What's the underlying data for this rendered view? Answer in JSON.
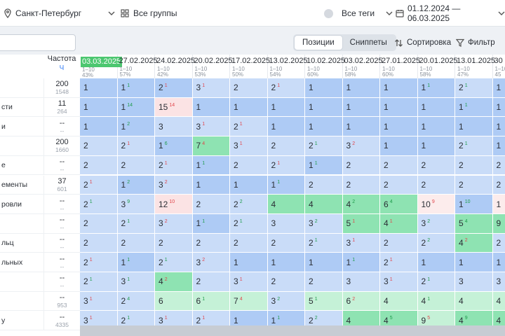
{
  "filters": {
    "region": "Санкт-Петербург",
    "groups": "Все группы",
    "tags": "Все теги",
    "date_range": "01.12.2024 — 06.03.2025"
  },
  "toolbar": {
    "tab_positions": "Позиции",
    "tab_snippets": "Сниппеты",
    "sort_label": "Сортировка",
    "filter_label": "Фильтр"
  },
  "table": {
    "freq_header": "Частота",
    "freq_unit": "Ч",
    "columns": [
      {
        "date": "03.03.2025",
        "range": "1–10",
        "pct": "43%"
      },
      {
        "date": "27.02.2025",
        "range": "1–10",
        "pct": "57%"
      },
      {
        "date": "24.02.2025",
        "range": "1–10",
        "pct": "42%"
      },
      {
        "date": "20.02.2025",
        "range": "1–10",
        "pct": "53%"
      },
      {
        "date": "17.02.2025",
        "range": "1–10",
        "pct": "50%"
      },
      {
        "date": "13.02.2025",
        "range": "1–10",
        "pct": "54%"
      },
      {
        "date": "10.02.2025",
        "range": "1–10",
        "pct": "60%"
      },
      {
        "date": "03.02.2025",
        "range": "1–10",
        "pct": "58%"
      },
      {
        "date": "27.01.2025",
        "range": "1–10",
        "pct": "60%"
      },
      {
        "date": "20.01.2025",
        "range": "1–10",
        "pct": "58%"
      },
      {
        "date": "13.01.2025",
        "range": "1–10",
        "pct": "47%"
      },
      {
        "date": "30",
        "range": "1–10",
        "pct": "45"
      }
    ],
    "rows": [
      {
        "kw": "",
        "fa": "200",
        "fb": "1548",
        "cells": [
          [
            "1",
            "",
            "",
            "b"
          ],
          [
            "1",
            "1",
            "up",
            "b"
          ],
          [
            "2",
            "1",
            "dn",
            "b"
          ],
          [
            "3",
            "1",
            "dn",
            "lb"
          ],
          [
            "2",
            "",
            "",
            "lb"
          ],
          [
            "2",
            "1",
            "dn",
            "lb"
          ],
          [
            "1",
            "",
            "",
            "b"
          ],
          [
            "1",
            "",
            "",
            "b"
          ],
          [
            "1",
            "",
            "",
            "b"
          ],
          [
            "1",
            "1",
            "up",
            "b"
          ],
          [
            "2",
            "1",
            "up",
            "lb"
          ],
          [
            "1",
            "",
            "",
            "b"
          ]
        ]
      },
      {
        "kw": "сти",
        "fa": "11",
        "fb": "264",
        "cells": [
          [
            "1",
            "",
            "",
            "b"
          ],
          [
            "1",
            "14",
            "up",
            "b"
          ],
          [
            "15",
            "14",
            "dn",
            "r"
          ],
          [
            "1",
            "",
            "",
            "b"
          ],
          [
            "1",
            "",
            "",
            "b"
          ],
          [
            "1",
            "",
            "",
            "b"
          ],
          [
            "1",
            "",
            "",
            "b"
          ],
          [
            "1",
            "",
            "",
            "b"
          ],
          [
            "1",
            "",
            "",
            "b"
          ],
          [
            "1",
            "",
            "",
            "b"
          ],
          [
            "1",
            "1",
            "up",
            "b"
          ],
          [
            "1",
            "",
            "",
            "b"
          ]
        ]
      },
      {
        "kw": "и",
        "fa": "--",
        "fb": "--",
        "cells": [
          [
            "1",
            "",
            "",
            "b"
          ],
          [
            "1",
            "2",
            "up",
            "b"
          ],
          [
            "3",
            "",
            "",
            "lb"
          ],
          [
            "3",
            "1",
            "dn",
            "lb"
          ],
          [
            "2",
            "1",
            "dn",
            "lb"
          ],
          [
            "1",
            "",
            "",
            "b"
          ],
          [
            "1",
            "",
            "",
            "b"
          ],
          [
            "1",
            "",
            "",
            "b"
          ],
          [
            "1",
            "",
            "",
            "b"
          ],
          [
            "1",
            "",
            "",
            "b"
          ],
          [
            "1",
            "",
            "",
            "b"
          ],
          [
            "1",
            "",
            "",
            "b"
          ]
        ]
      },
      {
        "kw": "",
        "fa": "200",
        "fb": "1660",
        "cells": [
          [
            "2",
            "",
            "",
            "lb"
          ],
          [
            "2",
            "1",
            "dn",
            "lb"
          ],
          [
            "1",
            "6",
            "up",
            "b"
          ],
          [
            "7",
            "4",
            "dn",
            "g"
          ],
          [
            "3",
            "1",
            "dn",
            "lb"
          ],
          [
            "2",
            "",
            "",
            "lb"
          ],
          [
            "2",
            "1",
            "up",
            "lb"
          ],
          [
            "3",
            "2",
            "dn",
            "lb"
          ],
          [
            "1",
            "",
            "",
            "b"
          ],
          [
            "1",
            "",
            "",
            "b"
          ],
          [
            "2",
            "1",
            "up",
            "lb"
          ],
          [
            "1",
            "",
            "",
            "b"
          ]
        ]
      },
      {
        "kw": "е",
        "fa": "--",
        "fb": "--",
        "cells": [
          [
            "2",
            "",
            "",
            "lb"
          ],
          [
            "2",
            "",
            "",
            "lb"
          ],
          [
            "2",
            "1",
            "dn",
            "lb"
          ],
          [
            "1",
            "1",
            "up",
            "b"
          ],
          [
            "2",
            "",
            "",
            "lb"
          ],
          [
            "2",
            "1",
            "dn",
            "lb"
          ],
          [
            "1",
            "1",
            "up",
            "b"
          ],
          [
            "2",
            "",
            "",
            "lb"
          ],
          [
            "2",
            "",
            "",
            "lb"
          ],
          [
            "2",
            "",
            "",
            "lb"
          ],
          [
            "2",
            "",
            "",
            "lb"
          ],
          [
            "2",
            "",
            "",
            "lb"
          ]
        ]
      },
      {
        "kw": "ементы",
        "fa": "37",
        "fb": "601",
        "cells": [
          [
            "2",
            "1",
            "dn",
            "lb"
          ],
          [
            "1",
            "2",
            "up",
            "b"
          ],
          [
            "3",
            "2",
            "dn",
            "lb"
          ],
          [
            "1",
            "",
            "",
            "b"
          ],
          [
            "1",
            "",
            "",
            "b"
          ],
          [
            "1",
            "1",
            "up",
            "b"
          ],
          [
            "2",
            "",
            "",
            "lb"
          ],
          [
            "2",
            "",
            "",
            "lb"
          ],
          [
            "2",
            "",
            "",
            "lb"
          ],
          [
            "2",
            "",
            "",
            "lb"
          ],
          [
            "2",
            "",
            "",
            "lb"
          ],
          [
            "2",
            "",
            "",
            "lb"
          ]
        ]
      },
      {
        "kw": "ровли",
        "fa": "--",
        "fb": "--",
        "cells": [
          [
            "2",
            "1",
            "up",
            "lb"
          ],
          [
            "3",
            "9",
            "up",
            "lb"
          ],
          [
            "12",
            "10",
            "dn",
            "r"
          ],
          [
            "2",
            "",
            "",
            "lb"
          ],
          [
            "2",
            "2",
            "up",
            "lb"
          ],
          [
            "4",
            "",
            "",
            "g"
          ],
          [
            "4",
            "",
            "",
            "g"
          ],
          [
            "4",
            "2",
            "up",
            "g"
          ],
          [
            "6",
            "4",
            "up",
            "g"
          ],
          [
            "10",
            "9",
            "dn",
            "lr"
          ],
          [
            "1",
            "10",
            "up",
            "b"
          ],
          [
            "1",
            "",
            "",
            "lr"
          ]
        ]
      },
      {
        "kw": "",
        "fa": "--",
        "fb": "--",
        "cells": [
          [
            "2",
            "",
            "",
            "lb"
          ],
          [
            "2",
            "1",
            "up",
            "lb"
          ],
          [
            "3",
            "2",
            "dn",
            "lb"
          ],
          [
            "1",
            "1",
            "up",
            "b"
          ],
          [
            "2",
            "1",
            "up",
            "lb"
          ],
          [
            "3",
            "",
            "",
            "lb"
          ],
          [
            "3",
            "2",
            "up",
            "lb"
          ],
          [
            "5",
            "1",
            "dn",
            "g"
          ],
          [
            "4",
            "1",
            "dn",
            "g"
          ],
          [
            "3",
            "2",
            "up",
            "lb"
          ],
          [
            "5",
            "4",
            "up",
            "g"
          ],
          [
            "9",
            "",
            "",
            "g"
          ]
        ]
      },
      {
        "kw": "льц",
        "fa": "--",
        "fb": "--",
        "cells": [
          [
            "2",
            "",
            "",
            "lb"
          ],
          [
            "2",
            "",
            "",
            "lb"
          ],
          [
            "2",
            "",
            "",
            "lb"
          ],
          [
            "2",
            "",
            "",
            "lb"
          ],
          [
            "2",
            "",
            "",
            "lb"
          ],
          [
            "2",
            "",
            "",
            "lb"
          ],
          [
            "2",
            "1",
            "up",
            "lb"
          ],
          [
            "3",
            "1",
            "dn",
            "lb"
          ],
          [
            "2",
            "",
            "",
            "lb"
          ],
          [
            "2",
            "2",
            "up",
            "lb"
          ],
          [
            "4",
            "2",
            "dn",
            "g"
          ],
          [
            "2",
            "",
            "",
            "lb"
          ]
        ]
      },
      {
        "kw": "льных",
        "fa": "--",
        "fb": "--",
        "cells": [
          [
            "2",
            "1",
            "dn",
            "lb"
          ],
          [
            "1",
            "1",
            "up",
            "b"
          ],
          [
            "2",
            "1",
            "up",
            "lb"
          ],
          [
            "3",
            "2",
            "dn",
            "lb"
          ],
          [
            "1",
            "",
            "",
            "b"
          ],
          [
            "1",
            "",
            "",
            "b"
          ],
          [
            "1",
            "",
            "",
            "b"
          ],
          [
            "1",
            "1",
            "up",
            "b"
          ],
          [
            "2",
            "1",
            "dn",
            "lb"
          ],
          [
            "1",
            "",
            "",
            "b"
          ],
          [
            "1",
            "",
            "",
            "b"
          ],
          [
            "1",
            "",
            "",
            "b"
          ]
        ]
      },
      {
        "kw": "",
        "fa": "--",
        "fb": "--",
        "cells": [
          [
            "2",
            "1",
            "up",
            "lb"
          ],
          [
            "3",
            "1",
            "up",
            "lb"
          ],
          [
            "4",
            "2",
            "dn",
            "g"
          ],
          [
            "2",
            "",
            "",
            "lb"
          ],
          [
            "3",
            "1",
            "dn",
            "lb"
          ],
          [
            "2",
            "",
            "",
            "lb"
          ],
          [
            "2",
            "",
            "",
            "lb"
          ],
          [
            "3",
            "",
            "",
            "lb"
          ],
          [
            "3",
            "1",
            "dn",
            "lb"
          ],
          [
            "2",
            "1",
            "up",
            "lb"
          ],
          [
            "3",
            "",
            "",
            "lb"
          ],
          [
            "3",
            "",
            "",
            "lb"
          ]
        ]
      },
      {
        "kw": "",
        "fa": "--",
        "fb": "953",
        "cells": [
          [
            "3",
            "1",
            "dn",
            "lb"
          ],
          [
            "2",
            "4",
            "up",
            "lb"
          ],
          [
            "6",
            "",
            "",
            "lg"
          ],
          [
            "6",
            "1",
            "up",
            "lg"
          ],
          [
            "7",
            "4",
            "dn",
            "lg"
          ],
          [
            "3",
            "2",
            "up",
            "lb"
          ],
          [
            "5",
            "1",
            "up",
            "lg"
          ],
          [
            "6",
            "2",
            "dn",
            "lg"
          ],
          [
            "4",
            "",
            "",
            "lg"
          ],
          [
            "4",
            "1",
            "up",
            "lg"
          ],
          [
            "4",
            "",
            "",
            "lg"
          ],
          [
            "4",
            "",
            "",
            "lg"
          ]
        ]
      },
      {
        "kw": "у",
        "fa": "--",
        "fb": "4335",
        "cells": [
          [
            "3",
            "1",
            "dn",
            "lb"
          ],
          [
            "2",
            "1",
            "up",
            "lb"
          ],
          [
            "3",
            "1",
            "dn",
            "lb"
          ],
          [
            "2",
            "1",
            "dn",
            "lb"
          ],
          [
            "1",
            "",
            "",
            "b"
          ],
          [
            "1",
            "1",
            "up",
            "b"
          ],
          [
            "2",
            "2",
            "up",
            "lb"
          ],
          [
            "4",
            "",
            "",
            "g"
          ],
          [
            "4",
            "5",
            "up",
            "g"
          ],
          [
            "9",
            "5",
            "dn",
            "lg"
          ],
          [
            "4",
            "9",
            "up",
            "g"
          ],
          [
            "4",
            "",
            "",
            "g"
          ]
        ]
      }
    ]
  }
}
